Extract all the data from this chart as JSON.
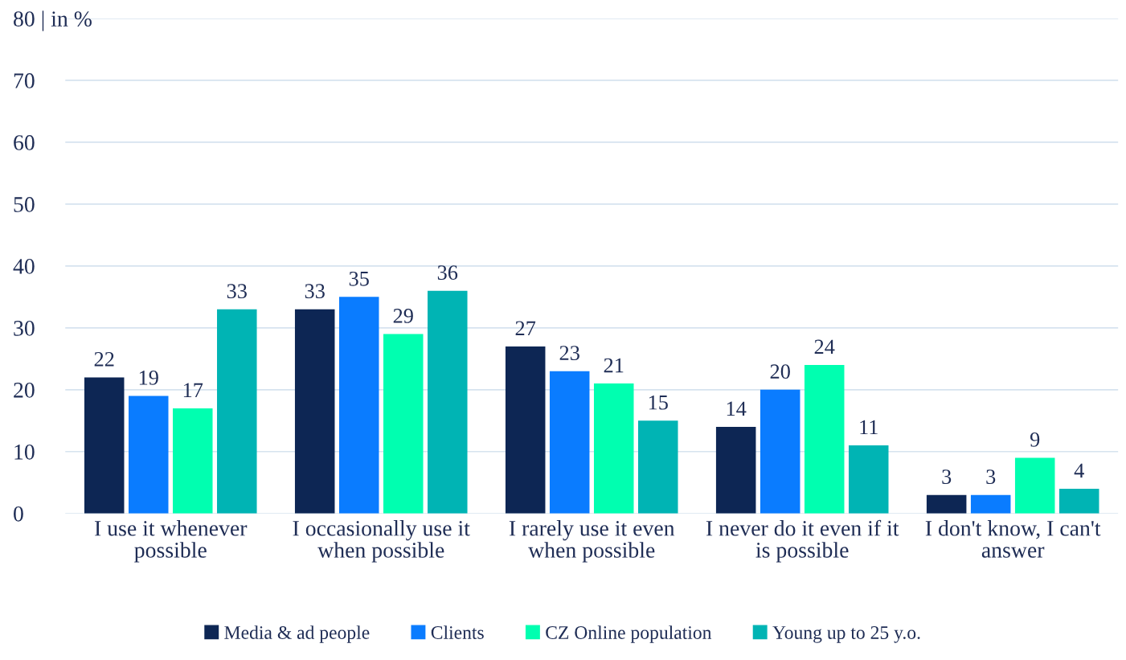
{
  "chart_data": {
    "type": "bar",
    "categories": [
      "I use it whenever possible",
      "I occasionally use it when possible",
      "I rarely use it even when possible",
      "I never do it even if it is possible",
      "I don't know, I can't answer"
    ],
    "series": [
      {
        "name": "Media & ad people",
        "color": "#0d2654",
        "values": [
          22,
          33,
          27,
          14,
          3
        ]
      },
      {
        "name": "Clients",
        "color": "#0a7cff",
        "values": [
          19,
          35,
          23,
          20,
          3
        ]
      },
      {
        "name": "CZ Online population",
        "color": "#00ffb0",
        "values": [
          17,
          29,
          21,
          24,
          9
        ]
      },
      {
        "name": "Young up to 25 y.o.",
        "color": "#00b4b4",
        "values": [
          33,
          36,
          15,
          11,
          4
        ]
      }
    ],
    "ylim": [
      0,
      80
    ],
    "yticks": [
      0,
      10,
      20,
      30,
      40,
      50,
      60,
      70,
      {
        "value": 80,
        "label": "80 | in %"
      }
    ],
    "grid": "y",
    "legend": "bottom",
    "data_labels": true
  }
}
